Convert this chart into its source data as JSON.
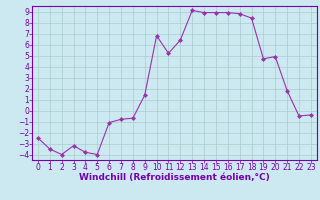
{
  "x": [
    0,
    1,
    2,
    3,
    4,
    5,
    6,
    7,
    8,
    9,
    10,
    11,
    12,
    13,
    14,
    15,
    16,
    17,
    18,
    19,
    20,
    21,
    22,
    23
  ],
  "y": [
    -2.5,
    -3.5,
    -4.0,
    -3.2,
    -3.8,
    -4.0,
    -1.1,
    -0.8,
    -0.7,
    1.4,
    6.8,
    5.2,
    6.4,
    9.1,
    8.9,
    8.9,
    8.9,
    8.8,
    8.4,
    4.7,
    4.9,
    1.8,
    -0.5,
    -0.4
  ],
  "line_color": "#9933aa",
  "marker": "D",
  "marker_size": 2,
  "bg_color": "#cce8f0",
  "grid_color": "#aacccc",
  "xlabel": "Windchill (Refroidissement éolien,°C)",
  "xlabel_color": "#7700aa",
  "tick_color": "#7700aa",
  "spine_color": "#7700aa",
  "ylim": [
    -4.5,
    9.5
  ],
  "xlim": [
    -0.5,
    23.5
  ],
  "yticks": [
    -4,
    -3,
    -2,
    -1,
    0,
    1,
    2,
    3,
    4,
    5,
    6,
    7,
    8,
    9
  ],
  "xticks": [
    0,
    1,
    2,
    3,
    4,
    5,
    6,
    7,
    8,
    9,
    10,
    11,
    12,
    13,
    14,
    15,
    16,
    17,
    18,
    19,
    20,
    21,
    22,
    23
  ],
  "label_fontsize": 6,
  "tick_fontsize": 5.5,
  "xlabel_fontsize": 6.5
}
